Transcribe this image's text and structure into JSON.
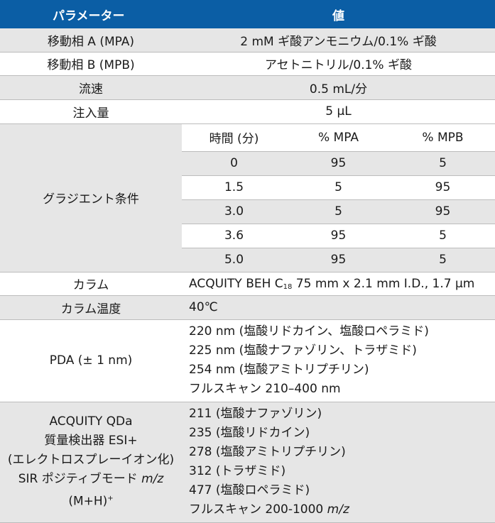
{
  "header": {
    "param": "パラメーター",
    "value": "値"
  },
  "rows": {
    "mpa": {
      "label": "移動相 A (MPA)",
      "value": "2 mM ギ酸アンモニウム/0.1% ギ酸"
    },
    "mpb": {
      "label": "移動相 B (MPB)",
      "value": "アセトニトリル/0.1% ギ酸"
    },
    "flow": {
      "label": "流速",
      "value": "0.5 mL/分"
    },
    "inj": {
      "label": "注入量",
      "value": "5 μL"
    },
    "gradient": {
      "label": "グラジエント条件",
      "head": [
        "時間 (分)",
        "% MPA",
        "% MPB"
      ],
      "steps": [
        [
          "0",
          "95",
          "5"
        ],
        [
          "1.5",
          "5",
          "95"
        ],
        [
          "3.0",
          "5",
          "95"
        ],
        [
          "3.6",
          "95",
          "5"
        ],
        [
          "5.0",
          "95",
          "5"
        ]
      ]
    },
    "column": {
      "label": "カラム",
      "pre": "ACQUITY BEH C",
      "sub": "18",
      "post": " 75 mm x 2.1 mm I.D., 1.7 μm"
    },
    "coltemp": {
      "label": "カラム温度",
      "value": "40℃"
    },
    "pda": {
      "label": "PDA (± 1 nm)",
      "lines": [
        "220 nm (塩酸リドカイン、塩酸ロペラミド)",
        "225 nm (塩酸ナファゾリン、トラザミド)",
        "254 nm (塩酸アミトリプチリン)",
        "フルスキャン 210–400 nm"
      ]
    },
    "ms": {
      "label_lines": [
        "ACQUITY QDa",
        "質量検出器 ESI+",
        "(エレクトロスプレーイオン化)"
      ],
      "label_sir": "SIR ポジティブモード ",
      "label_mz": "m/z",
      "label_mh": "(M+H)",
      "label_sup": "+",
      "lines": [
        "211 (塩酸ナファゾリン)",
        "235 (塩酸リドカイン)",
        "278 (塩酸アミトリプチリン)",
        "312 (トラザミド)",
        "477 (塩酸ロペラミド)"
      ],
      "scan": "フルスキャン 200-1000 ",
      "scan_mz": "m/z"
    }
  },
  "colors": {
    "header_bg": "#0b5ea5",
    "stripe": "#e6e6e6",
    "border": "#bcbcbc"
  }
}
